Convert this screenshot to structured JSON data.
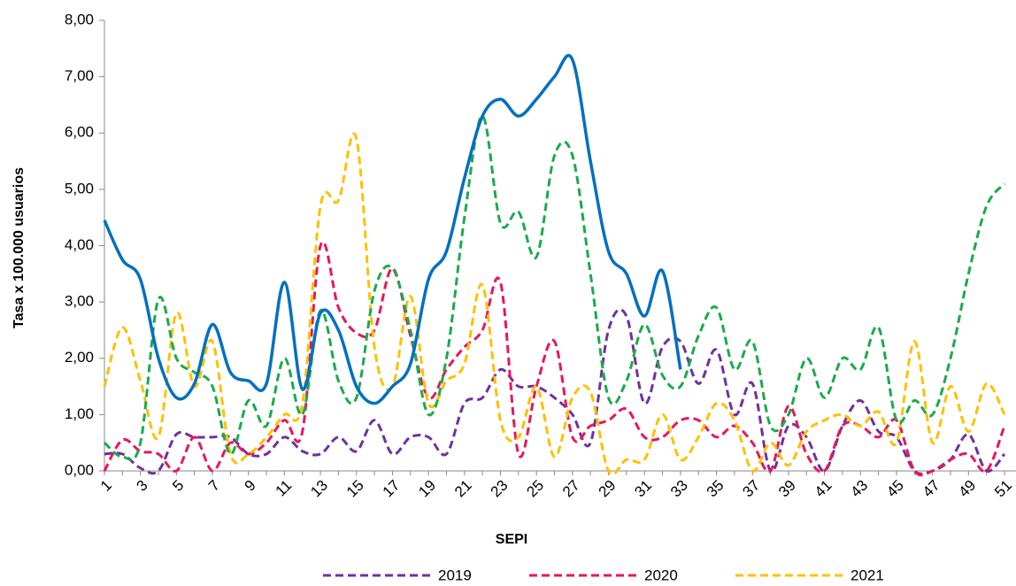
{
  "chart_data": {
    "type": "line",
    "x_label": "SEPI",
    "y_label": "Tasa x 100.000 usuarios",
    "categories": [
      1,
      null,
      3,
      null,
      5,
      null,
      7,
      null,
      9,
      null,
      11,
      null,
      13,
      null,
      15,
      null,
      17,
      null,
      19,
      null,
      21,
      null,
      23,
      null,
      25,
      null,
      27,
      null,
      29,
      null,
      31,
      null,
      33,
      null,
      35,
      null,
      37,
      null,
      39,
      null,
      41,
      null,
      43,
      null,
      45,
      null,
      47,
      null,
      49,
      null,
      51
    ],
    "ylim": [
      0,
      8
    ],
    "yticks": [
      {
        "value": 0,
        "label": "0,00"
      },
      {
        "value": 1,
        "label": "1,00"
      },
      {
        "value": 2,
        "label": "2,00"
      },
      {
        "value": 3,
        "label": "3,00"
      },
      {
        "value": 4,
        "label": "4,00"
      },
      {
        "value": 5,
        "label": "5,00"
      },
      {
        "value": 6,
        "label": "6,00"
      },
      {
        "value": 7,
        "label": "7,00"
      },
      {
        "value": 8,
        "label": "8,00"
      }
    ],
    "series": [
      {
        "name": "2019",
        "color": "#7030a0",
        "dash": true,
        "values": [
          0.3,
          0.3,
          0.05,
          0,
          0.65,
          0.6,
          0.6,
          0.6,
          0.3,
          0.3,
          0.6,
          0.35,
          0.3,
          0.6,
          0.35,
          0.9,
          0.3,
          0.6,
          0.6,
          0.3,
          1.2,
          1.3,
          1.8,
          1.5,
          1.5,
          1.3,
          1.0,
          0.5,
          2.5,
          2.75,
          1.2,
          2.2,
          2.3,
          1.55,
          2.15,
          1.0,
          1.55,
          0,
          0.8,
          0.6,
          0,
          0.8,
          1.25,
          0.7,
          0.6,
          0,
          0,
          0.2,
          0.65,
          0,
          0.3
        ]
      },
      {
        "name": "2020",
        "color": "#e6175c",
        "dash": true,
        "values": [
          0,
          0.55,
          0.35,
          0.3,
          0,
          0.6,
          0,
          0.5,
          0.3,
          0.5,
          0.9,
          0.7,
          4.0,
          2.9,
          2.45,
          2.5,
          3.6,
          2.4,
          1.3,
          1.8,
          2.2,
          2.5,
          3.35,
          0.3,
          1.5,
          2.3,
          0.6,
          0.8,
          0.9,
          1.1,
          0.6,
          0.6,
          0.9,
          0.9,
          0.6,
          0.8,
          0.5,
          0,
          1.15,
          0.3,
          0,
          0.8,
          0.8,
          0.6,
          0.9,
          0,
          0,
          0.2,
          0.3,
          0,
          0.8
        ]
      },
      {
        "name": "2021",
        "color": "#ffc000",
        "dash": true,
        "values": [
          1.5,
          2.55,
          1.6,
          0.6,
          2.8,
          1.5,
          2.3,
          0.3,
          0.3,
          0.6,
          1.0,
          1.2,
          4.7,
          4.8,
          5.9,
          2.2,
          1.5,
          3.1,
          1.2,
          1.6,
          1.9,
          3.3,
          0.9,
          0.6,
          1.5,
          0.25,
          1.3,
          1.4,
          0,
          0.2,
          0.2,
          1.0,
          0.2,
          0.6,
          1.2,
          0.9,
          0,
          0.5,
          0.1,
          0.7,
          0.9,
          1.0,
          0.8,
          1.05,
          0.5,
          2.3,
          0.5,
          1.5,
          0.7,
          1.55,
          1.0
        ]
      },
      {
        "color": "#1aab4b",
        "dash": true,
        "values": [
          0.5,
          0.25,
          0.5,
          3.05,
          2.0,
          1.75,
          1.5,
          0.3,
          1.25,
          0.8,
          2.0,
          1.0,
          2.85,
          1.6,
          1.3,
          3.2,
          3.6,
          2.5,
          1.0,
          2.0,
          4.5,
          6.3,
          4.4,
          4.6,
          3.8,
          5.6,
          5.6,
          3.5,
          1.3,
          1.6,
          2.6,
          1.7,
          1.5,
          2.4,
          2.9,
          1.8,
          2.3,
          0.8,
          1.0,
          2.0,
          1.3,
          2.0,
          1.8,
          2.55,
          0.9,
          1.25,
          1.0,
          2.0,
          3.5,
          4.7,
          5.1
        ]
      },
      {
        "color": "#0070c0",
        "dash": false,
        "values": [
          4.45,
          3.75,
          3.4,
          2.0,
          1.3,
          1.55,
          2.6,
          1.75,
          1.6,
          1.55,
          3.35,
          1.45,
          2.8,
          2.5,
          1.5,
          1.2,
          1.5,
          1.9,
          3.4,
          3.9,
          5.2,
          6.3,
          6.6,
          6.3,
          6.6,
          7.0,
          7.3,
          5.5,
          3.9,
          3.5,
          2.75,
          3.55,
          1.8,
          null,
          null,
          null,
          null,
          null,
          null,
          null,
          null,
          null,
          null,
          null,
          null,
          null,
          null,
          null,
          null,
          null,
          null
        ]
      }
    ]
  }
}
